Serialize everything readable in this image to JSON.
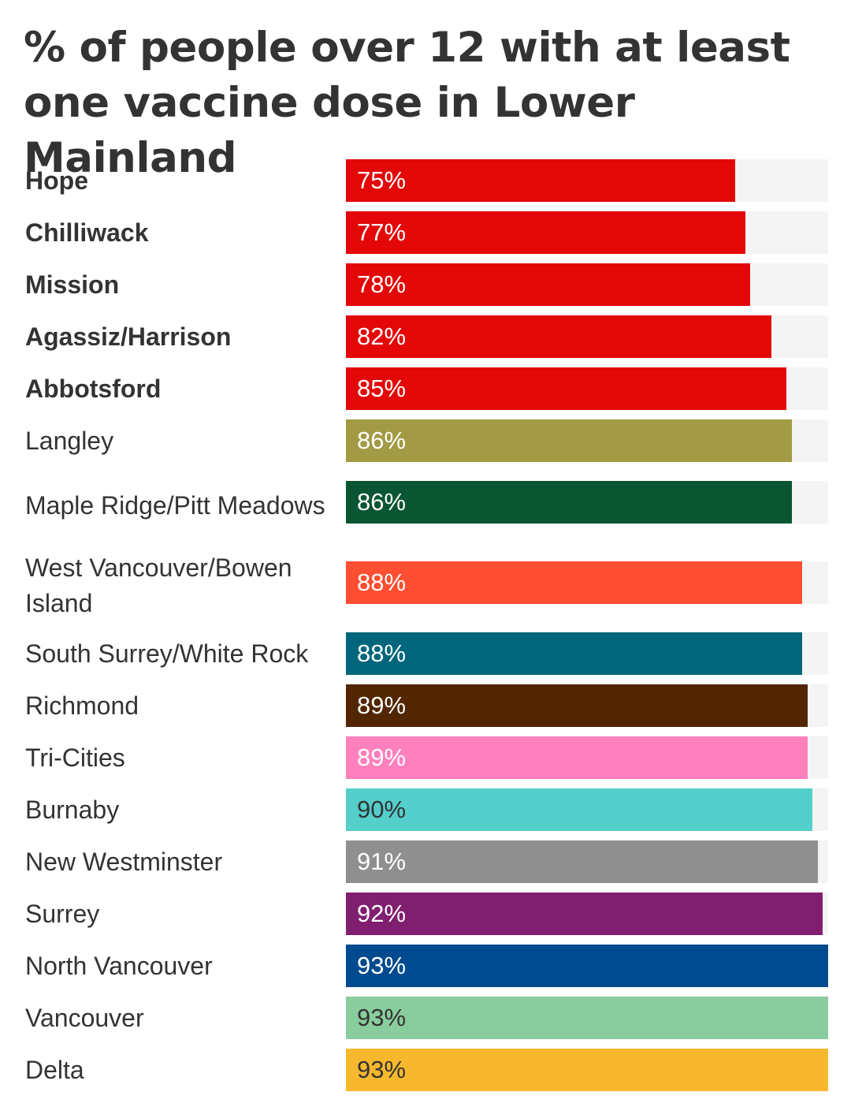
{
  "title": "% of people over 12 with at least one vaccine dose in Lower Mainland",
  "chart_data": {
    "type": "bar",
    "orientation": "horizontal",
    "title": "% of people over 12 with at least one vaccine dose in Lower Mainland",
    "xlim": [
      0,
      93
    ],
    "grid": false,
    "legend": "none",
    "value_suffix": "%",
    "categories": [
      "Hope",
      "Chilliwack",
      "Mission",
      "Agassiz/Harrison",
      "Abbotsford",
      "Langley",
      "Maple Ridge/Pitt Meadows",
      "West Vancouver/Bowen Island",
      "South Surrey/White Rock",
      "Richmond",
      "Tri-Cities",
      "Burnaby",
      "New Westminster",
      "Surrey",
      "North Vancouver",
      "Vancouver",
      "Delta"
    ],
    "values": [
      75,
      77,
      78,
      82,
      85,
      86,
      86,
      88,
      88,
      89,
      89,
      90,
      91,
      92,
      93,
      93,
      93
    ],
    "bar_colors": [
      "#e30707",
      "#e30707",
      "#e30707",
      "#e30707",
      "#e30707",
      "#a29a45",
      "#0a5632",
      "#ff4e31",
      "#00667c",
      "#512600",
      "#ff80bc",
      "#54cfcc",
      "#8f8f8f",
      "#801e70",
      "#004a8f",
      "#89cc9d",
      "#f8b82d"
    ],
    "label_colors": [
      "#ffffff",
      "#ffffff",
      "#ffffff",
      "#ffffff",
      "#ffffff",
      "#ffffff",
      "#ffffff",
      "#ffffff",
      "#ffffff",
      "#ffffff",
      "#ffffff",
      "#333333",
      "#ffffff",
      "#ffffff",
      "#ffffff",
      "#333333",
      "#333333"
    ],
    "bold_labels": [
      true,
      true,
      true,
      true,
      true,
      false,
      false,
      false,
      false,
      false,
      false,
      false,
      false,
      false,
      false,
      false,
      false
    ],
    "track_color": "#f4f4f4"
  }
}
